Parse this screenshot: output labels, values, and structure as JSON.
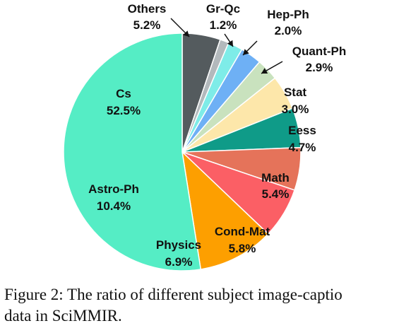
{
  "chart_data": {
    "type": "pie",
    "start_angle_deg": 0,
    "direction": "clockwise",
    "slices": [
      {
        "label": "Others",
        "value": 5.2,
        "display": "5.2%",
        "color": "#545b5e"
      },
      {
        "label": "Gr-Qc",
        "value": 1.2,
        "display": "1.2%",
        "color": "#b3b9bc"
      },
      {
        "label": "Hep-Ph",
        "value": 2.0,
        "display": "2.0%",
        "color": "#7eece8"
      },
      {
        "label": "Quant-Ph",
        "value": 2.9,
        "display": "2.9%",
        "color": "#6eb0f5"
      },
      {
        "label": "Stat",
        "value": 3.0,
        "display": "3.0%",
        "color": "#c9e2be"
      },
      {
        "label": "Eess",
        "value": 4.7,
        "display": "4.7%",
        "color": "#fde7aa"
      },
      {
        "label": "Math",
        "value": 5.4,
        "display": "5.4%",
        "color": "#0f9b88"
      },
      {
        "label": "Cond-Mat",
        "value": 5.8,
        "display": "5.8%",
        "color": "#e5735a"
      },
      {
        "label": "Physics",
        "value": 6.9,
        "display": "6.9%",
        "color": "#fb5f65"
      },
      {
        "label": "Astro-Ph",
        "value": 10.4,
        "display": "10.4%",
        "color": "#fd9f00"
      },
      {
        "label": "Cs",
        "value": 52.5,
        "display": "52.5%",
        "color": "#55edc5"
      }
    ]
  },
  "caption": {
    "line1": "Figure 2: The ratio of different subject image-captio",
    "line2": "data in SciMMIR."
  }
}
